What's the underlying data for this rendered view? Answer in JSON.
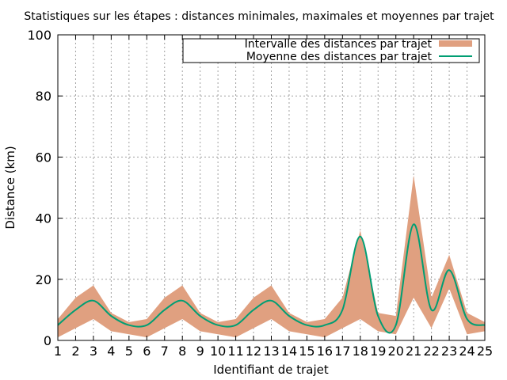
{
  "chart_data": {
    "type": "area",
    "title": "Statistiques sur les étapes : distances minimales, maximales et moyennes par trajet",
    "xlabel": "Identifiant de trajet",
    "ylabel": "Distance (km)",
    "xlim": [
      1,
      25
    ],
    "ylim": [
      0,
      100
    ],
    "x_ticks": [
      1,
      2,
      3,
      4,
      5,
      6,
      7,
      8,
      9,
      10,
      11,
      12,
      13,
      14,
      15,
      16,
      17,
      18,
      19,
      20,
      21,
      22,
      23,
      24,
      25
    ],
    "y_ticks": [
      0,
      20,
      40,
      60,
      80,
      100
    ],
    "grid": true,
    "legend_position": "top-right",
    "x": [
      1,
      2,
      3,
      4,
      5,
      6,
      7,
      8,
      9,
      10,
      11,
      12,
      13,
      14,
      15,
      16,
      17,
      18,
      19,
      20,
      21,
      22,
      23,
      24,
      25
    ],
    "series": [
      {
        "name": "Intervalle des distances par trajet",
        "kind": "range",
        "color": "#e0a080",
        "min": [
          1,
          4,
          7,
          3,
          2,
          1,
          4,
          7,
          3,
          2,
          1,
          4,
          7,
          3,
          2,
          1,
          4,
          7,
          3,
          2,
          14,
          4,
          17,
          2,
          3
        ],
        "max": [
          7,
          14,
          18,
          9,
          6,
          7,
          14,
          18,
          9,
          6,
          7,
          14,
          18,
          9,
          6,
          7,
          14,
          36,
          9,
          8,
          54,
          14,
          28,
          9,
          6
        ]
      },
      {
        "name": "Moyenne des distances par trajet",
        "kind": "line",
        "color": "#009e73",
        "values": [
          5,
          10,
          13,
          8,
          5,
          5,
          10,
          13,
          8,
          5,
          5,
          10,
          13,
          8,
          5,
          5,
          10,
          34,
          8,
          5,
          38,
          10,
          23,
          7,
          5
        ]
      }
    ]
  }
}
